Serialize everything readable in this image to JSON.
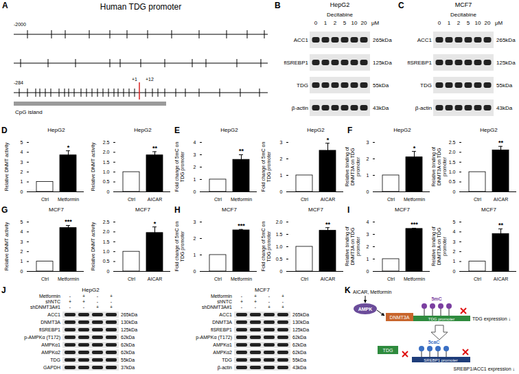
{
  "chart_data": [
    {
      "type": "bar",
      "panel_label": "D",
      "title": "HepG2",
      "y_label": "Relative DNMT activity",
      "categories": [
        "Ctrl",
        "Metformin"
      ],
      "values": [
        1,
        3.7
      ],
      "errors": [
        0,
        0.45
      ],
      "colors": [
        "#ffffff",
        "#000000"
      ],
      "ylim": [
        0,
        5
      ],
      "yticks": [
        0,
        1,
        2,
        3,
        4,
        5
      ],
      "annotations": [
        {
          "category": "Metformin",
          "text": "*"
        }
      ]
    },
    {
      "type": "bar",
      "title": "HepG2",
      "y_label": "Relative DNMT activity",
      "categories": [
        "Ctrl",
        "AICAR"
      ],
      "values": [
        1,
        1.85
      ],
      "errors": [
        0,
        0.18
      ],
      "colors": [
        "#ffffff",
        "#000000"
      ],
      "ylim": [
        0,
        2.5
      ],
      "yticks": [
        0,
        0.5,
        {
          "value": 1,
          "label": "1.0"
        },
        1.5,
        {
          "value": 2,
          "label": "2.0"
        },
        2.5
      ],
      "annotations": [
        {
          "category": "AICAR",
          "text": "**"
        }
      ]
    },
    {
      "type": "bar",
      "panel_label": "E",
      "title": "HepG2",
      "y_label": "Fold change of 5mC on TDG promoter",
      "categories": [
        "Ctrl",
        "Metformin"
      ],
      "values": [
        1,
        2.6
      ],
      "errors": [
        0,
        0.4
      ],
      "colors": [
        "#ffffff",
        "#000000"
      ],
      "ylim": [
        0,
        4
      ],
      "yticks": [
        0,
        1,
        2,
        3,
        4
      ],
      "annotations": [
        {
          "category": "Metformin",
          "text": "**"
        }
      ]
    },
    {
      "type": "bar",
      "title": "HepG2",
      "y_label": "Fold change of 5mC on TDG promoter",
      "categories": [
        "Ctrl",
        "AICAR"
      ],
      "values": [
        1,
        2.5
      ],
      "errors": [
        0,
        0.45
      ],
      "colors": [
        "#ffffff",
        "#000000"
      ],
      "ylim": [
        0,
        3
      ],
      "yticks": [
        0,
        1,
        2,
        3
      ],
      "annotations": [
        {
          "category": "AICAR",
          "text": "*"
        }
      ]
    },
    {
      "type": "bar",
      "panel_label": "F",
      "title": "HepG2",
      "y_label": "Relative binding of DNMT3A on TDG promoter",
      "categories": [
        "Ctrl",
        "Metformin"
      ],
      "values": [
        1,
        2.1
      ],
      "errors": [
        0,
        0.35
      ],
      "colors": [
        "#ffffff",
        "#000000"
      ],
      "ylim": [
        0,
        3
      ],
      "yticks": [
        0,
        1,
        2,
        3
      ],
      "annotations": [
        {
          "category": "Metformin",
          "text": "*"
        }
      ]
    },
    {
      "type": "bar",
      "title": "HepG2",
      "y_label": "Relative binding of DNMT3A on TDG promoter",
      "categories": [
        "Ctrl",
        "AICAR"
      ],
      "values": [
        1,
        2.1
      ],
      "errors": [
        0,
        0.2
      ],
      "colors": [
        "#ffffff",
        "#000000"
      ],
      "ylim": [
        0,
        2.5
      ],
      "yticks": [
        0,
        0.5,
        {
          "value": 1,
          "label": "1.0"
        },
        1.5,
        {
          "value": 2,
          "label": "2.0"
        },
        2.5
      ],
      "annotations": [
        {
          "category": "AICAR",
          "text": "**"
        }
      ]
    },
    {
      "type": "bar",
      "panel_label": "G",
      "title": "MCF7",
      "y_label": "Relative DNMT activity",
      "categories": [
        "Ctrl",
        "Metformin"
      ],
      "values": [
        1,
        4.4
      ],
      "errors": [
        0,
        0.25
      ],
      "colors": [
        "#ffffff",
        "#000000"
      ],
      "ylim": [
        0,
        5
      ],
      "yticks": [
        0,
        1,
        2,
        3,
        4,
        5
      ],
      "annotations": [
        {
          "category": "Metformin",
          "text": "***"
        }
      ]
    },
    {
      "type": "bar",
      "title": "MCF7",
      "y_label": "Relative DNMT activity",
      "categories": [
        "Ctrl",
        "AICAR"
      ],
      "values": [
        1,
        1.95
      ],
      "errors": [
        0,
        0.3
      ],
      "colors": [
        "#ffffff",
        "#000000"
      ],
      "ylim": [
        0,
        2.5
      ],
      "yticks": [
        0,
        0.5,
        {
          "value": 1,
          "label": "1.0"
        },
        1.5,
        {
          "value": 2,
          "label": "2.0"
        },
        2.5
      ],
      "annotations": [
        {
          "category": "AICAR",
          "text": "*"
        }
      ]
    },
    {
      "type": "bar",
      "panel_label": "H",
      "title": "MCF7",
      "y_label": "Fold change of 5mC on TDG promoter",
      "categories": [
        "Ctrl",
        "Metformin"
      ],
      "values": [
        1,
        2.5
      ],
      "errors": [
        0,
        0.05
      ],
      "colors": [
        "#ffffff",
        "#000000"
      ],
      "ylim": [
        0,
        3
      ],
      "yticks": [
        0,
        1,
        2,
        3
      ],
      "annotations": [
        {
          "category": "Metformin",
          "text": "***"
        }
      ]
    },
    {
      "type": "bar",
      "title": "MCF7",
      "y_label": "Fold change of 5mC on TDG promoter",
      "categories": [
        "Ctrl",
        "AICAR"
      ],
      "values": [
        1,
        1.65
      ],
      "errors": [
        0,
        0.12
      ],
      "colors": [
        "#ffffff",
        "#000000"
      ],
      "ylim": [
        0,
        2
      ],
      "yticks": [
        0,
        0.5,
        {
          "value": 1,
          "label": "1.0"
        },
        1.5,
        {
          "value": 2,
          "label": "2.0"
        }
      ],
      "annotations": [
        {
          "category": "AICAR",
          "text": "**"
        }
      ]
    },
    {
      "type": "bar",
      "panel_label": "I",
      "title": "MCF7",
      "y_label": "Relative binding of DNMT3A on TDG promoter",
      "categories": [
        "Ctrl",
        "Metformin"
      ],
      "values": [
        1,
        3.45
      ],
      "errors": [
        0,
        0.05
      ],
      "colors": [
        "#ffffff",
        "#000000"
      ],
      "ylim": [
        0,
        4
      ],
      "yticks": [
        0,
        1,
        2,
        3,
        4
      ],
      "annotations": [
        {
          "category": "Metformin",
          "text": "***"
        }
      ]
    },
    {
      "type": "bar",
      "title": "MCF7",
      "y_label": "Relative binding of DNMT3A on TDG promoter",
      "categories": [
        "Ctrl",
        "AICAR"
      ],
      "values": [
        1,
        3.8
      ],
      "errors": [
        0,
        0.5
      ],
      "colors": [
        "#ffffff",
        "#000000"
      ],
      "ylim": [
        0,
        5
      ],
      "yticks": [
        0,
        1,
        2,
        3,
        4,
        5
      ],
      "annotations": [
        {
          "category": "AICAR",
          "text": "**"
        }
      ]
    }
  ],
  "figure": {
    "A": {
      "panel_label": "A",
      "title": "Human TDG promoter",
      "start_label": "-2000",
      "region_label": "-284",
      "tss_label": "+1",
      "end_label": "+12",
      "island_label": "CpG island"
    },
    "B": {
      "panel_label": "B",
      "title": "HepG2",
      "treatment": "Decitabine",
      "concentrations": [
        "0",
        "1",
        "2",
        "5",
        "10",
        "20"
      ],
      "unit": "μM",
      "rows": [
        {
          "name": "ACC1",
          "size": "265kDa"
        },
        {
          "name": "flSREBP1",
          "size": "125kDa"
        },
        {
          "name": "TDG",
          "size": "55kDa"
        },
        {
          "name": "β-actin",
          "size": "43kDa"
        }
      ]
    },
    "C": {
      "panel_label": "C",
      "title": "MCF7",
      "treatment": "Decitabine",
      "concentrations": [
        "0",
        "1",
        "2",
        "5",
        "10",
        "20"
      ],
      "unit": "μM",
      "rows": [
        {
          "name": "ACC1",
          "size": "265kDa"
        },
        {
          "name": "flSREBP1",
          "size": "125kDa"
        },
        {
          "name": "TDG",
          "size": "55kDa"
        },
        {
          "name": "β-actin",
          "size": "43kDa"
        }
      ]
    },
    "J": {
      "panel_label": "J",
      "blots": [
        {
          "title": "HepG2",
          "conditions": [
            {
              "name": "Metformin",
              "values": [
                "-",
                "+",
                "-",
                "+"
              ]
            },
            {
              "name": "shNTC",
              "values": [
                "+",
                "+",
                "-",
                "-"
              ]
            },
            {
              "name": "shDNMT3A#1",
              "values": [
                "-",
                "-",
                "+",
                "+"
              ]
            }
          ],
          "rows": [
            {
              "name": "ACC1",
              "size": "265kDa"
            },
            {
              "name": "DNMT3A",
              "size": "130kDa"
            },
            {
              "name": "flSREBP1",
              "size": "125kDa"
            },
            {
              "name": "p-AMPKα (T172)",
              "size": "62kDa"
            },
            {
              "name": "AMPKα1",
              "size": "62kDa"
            },
            {
              "name": "AMPKα2",
              "size": "62kDa"
            },
            {
              "name": "TDG",
              "size": "55kDa"
            },
            {
              "name": "GAPDH",
              "size": "37kDa"
            }
          ]
        },
        {
          "title": "MCF7",
          "conditions": [
            {
              "name": "Metformin",
              "values": [
                "-",
                "+",
                "-",
                "+"
              ]
            },
            {
              "name": "shNTC",
              "values": [
                "+",
                "+",
                "-",
                "-"
              ]
            },
            {
              "name": "shDNMT3A#1",
              "values": [
                "-",
                "-",
                "+",
                "+"
              ]
            }
          ],
          "rows": [
            {
              "name": "ACC1",
              "size": "265kDa"
            },
            {
              "name": "DNMT3A",
              "size": "130kDa"
            },
            {
              "name": "flSREBP1",
              "size": "125kDa"
            },
            {
              "name": "p-AMPKα (T172)",
              "size": "62kDa"
            },
            {
              "name": "AMPKα1",
              "size": "62kDa"
            },
            {
              "name": "AMPKα2",
              "size": "62kDa"
            },
            {
              "name": "TDG",
              "size": "55kDa"
            },
            {
              "name": "β-actin",
              "size": "43kDa"
            }
          ]
        }
      ]
    },
    "K": {
      "panel_label": "K",
      "inducers": "AICAR, Metformin",
      "kinase": "AMPK",
      "methyltransferase": "DNMT3A",
      "mark1": "5mC",
      "promoter1": "TDG promoter",
      "outcome1": "TDG expression ↓",
      "enzyme": "TDG",
      "mark2": "5caC",
      "promoter2": "SREBP1 promoter",
      "outcome2": "SREBP1/ACC1 expression ↓"
    }
  }
}
